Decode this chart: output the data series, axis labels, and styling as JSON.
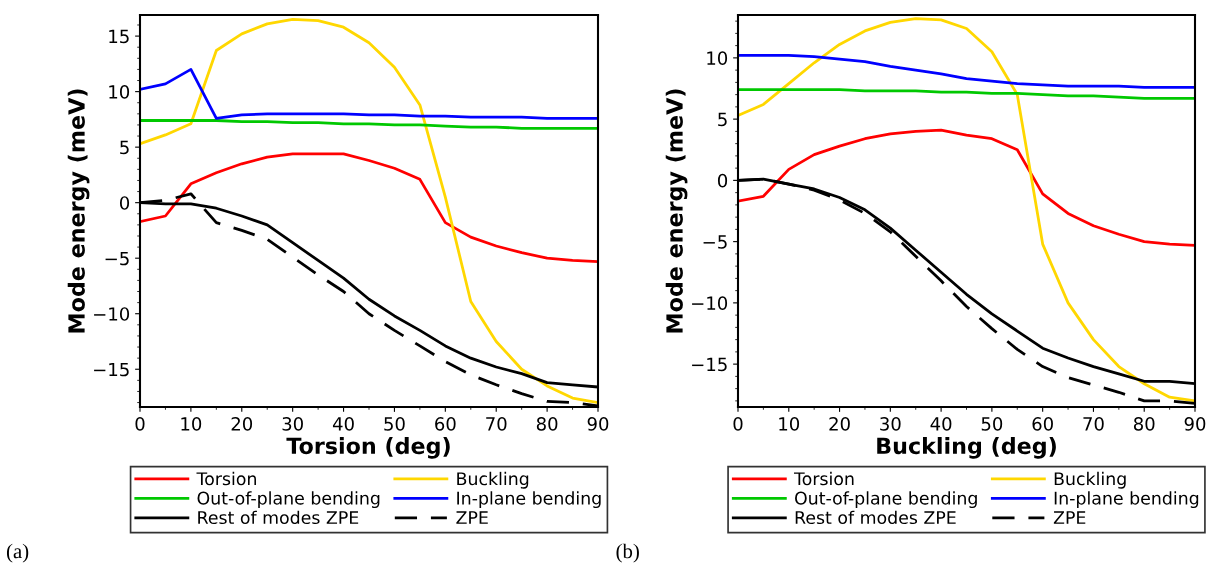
{
  "chart_data": [
    {
      "type": "line",
      "xlabel": "Torsion (deg)",
      "ylabel": "Mode energy (meV)",
      "x": [
        0,
        5,
        10,
        15,
        20,
        25,
        30,
        35,
        40,
        45,
        50,
        55,
        60,
        65,
        70,
        75,
        80,
        85,
        90
      ],
      "xlim": [
        0,
        90
      ],
      "xticks": [
        0,
        10,
        20,
        30,
        40,
        50,
        60,
        70,
        80,
        90
      ],
      "ylim": [
        -18.4,
        16.9
      ],
      "yticks": [
        -15,
        -10,
        -5,
        0,
        5,
        10,
        15
      ],
      "grid": false,
      "legend": "bottom",
      "line_style": "solid",
      "marker": "none",
      "annotations": [
        "(a)"
      ],
      "series": [
        {
          "name": "Torsion",
          "color": "#ff0000",
          "values": [
            -1.7,
            -1.2,
            1.7,
            2.7,
            3.5,
            4.1,
            4.4,
            4.4,
            4.4,
            3.8,
            3.1,
            2.1,
            -1.8,
            -3.1,
            -3.9,
            -4.5,
            -5.0,
            -5.2,
            -5.3
          ]
        },
        {
          "name": "Buckling",
          "color": "#ffd700",
          "values": [
            5.3,
            6.1,
            7.1,
            13.7,
            15.2,
            16.1,
            16.5,
            16.4,
            15.8,
            14.4,
            12.2,
            8.8,
            0.5,
            -8.9,
            -12.5,
            -15.0,
            -16.5,
            -17.6,
            -18.0
          ]
        },
        {
          "name": "Out-of-plane bending",
          "color": "#00c800",
          "values": [
            7.4,
            7.4,
            7.4,
            7.4,
            7.3,
            7.3,
            7.2,
            7.2,
            7.1,
            7.1,
            7.0,
            7.0,
            6.9,
            6.8,
            6.8,
            6.7,
            6.7,
            6.7,
            6.7
          ]
        },
        {
          "name": "In-plane bending",
          "color": "#0000ff",
          "values": [
            10.2,
            10.7,
            12.0,
            7.6,
            7.9,
            8.0,
            8.0,
            8.0,
            8.0,
            7.9,
            7.9,
            7.8,
            7.8,
            7.7,
            7.7,
            7.7,
            7.6,
            7.6,
            7.6
          ]
        },
        {
          "name": "Rest of modes ZPE",
          "color": "#000000",
          "values": [
            0,
            -0.1,
            -0.1,
            -0.5,
            -1.2,
            -2.0,
            -3.6,
            -5.2,
            -6.8,
            -8.7,
            -10.2,
            -11.5,
            -12.9,
            -14.0,
            -14.8,
            -15.4,
            -16.2,
            -16.4,
            -16.6
          ]
        },
        {
          "name": "ZPE",
          "color": "#000000",
          "line_style": "dashed",
          "values": [
            0,
            0.2,
            0.8,
            -1.8,
            -2.5,
            -3.3,
            -4.9,
            -6.5,
            -8.0,
            -10.0,
            -11.5,
            -12.9,
            -14.3,
            -15.5,
            -16.4,
            -17.2,
            -17.9,
            -18.0,
            -18.3
          ]
        }
      ]
    },
    {
      "type": "line",
      "xlabel": "Buckling (deg)",
      "ylabel": "Mode energy (meV)",
      "x": [
        0,
        5,
        10,
        15,
        20,
        25,
        30,
        35,
        40,
        45,
        50,
        55,
        60,
        65,
        70,
        75,
        80,
        85,
        90
      ],
      "xlim": [
        0,
        90
      ],
      "xticks": [
        0,
        10,
        20,
        30,
        40,
        50,
        60,
        70,
        80,
        90
      ],
      "ylim": [
        -18.5,
        13.5
      ],
      "yticks": [
        -15,
        -10,
        -5,
        0,
        5,
        10
      ],
      "grid": false,
      "legend": "bottom",
      "line_style": "solid",
      "marker": "none",
      "annotations": [
        "(b)"
      ],
      "series": [
        {
          "name": "Torsion",
          "color": "#ff0000",
          "values": [
            -1.7,
            -1.3,
            0.9,
            2.1,
            2.8,
            3.4,
            3.8,
            4.0,
            4.1,
            3.7,
            3.4,
            2.5,
            -1.1,
            -2.7,
            -3.7,
            -4.4,
            -5.0,
            -5.2,
            -5.3
          ]
        },
        {
          "name": "Buckling",
          "color": "#ffd700",
          "values": [
            5.3,
            6.2,
            7.9,
            9.6,
            11.1,
            12.2,
            12.9,
            13.2,
            13.1,
            12.4,
            10.5,
            7.0,
            -5.2,
            -10.0,
            -13.0,
            -15.2,
            -16.6,
            -17.7,
            -18.0
          ]
        },
        {
          "name": "Out-of-plane bending",
          "color": "#00c800",
          "values": [
            7.4,
            7.4,
            7.4,
            7.4,
            7.4,
            7.3,
            7.3,
            7.3,
            7.2,
            7.2,
            7.1,
            7.1,
            7.0,
            6.9,
            6.9,
            6.8,
            6.7,
            6.7,
            6.7
          ]
        },
        {
          "name": "In-plane bending",
          "color": "#0000ff",
          "values": [
            10.2,
            10.2,
            10.2,
            10.1,
            9.9,
            9.7,
            9.3,
            9.0,
            8.7,
            8.3,
            8.1,
            7.9,
            7.8,
            7.7,
            7.7,
            7.7,
            7.6,
            7.6,
            7.6
          ]
        },
        {
          "name": "Rest of modes ZPE",
          "color": "#000000",
          "values": [
            0,
            0.1,
            -0.3,
            -0.7,
            -1.4,
            -2.4,
            -3.9,
            -5.7,
            -7.5,
            -9.3,
            -10.9,
            -12.3,
            -13.7,
            -14.5,
            -15.2,
            -15.8,
            -16.4,
            -16.4,
            -16.6
          ]
        },
        {
          "name": "ZPE",
          "color": "#000000",
          "line_style": "dashed",
          "values": [
            0,
            0.1,
            -0.3,
            -0.8,
            -1.6,
            -2.7,
            -4.2,
            -6.2,
            -8.2,
            -10.3,
            -12.1,
            -13.8,
            -15.2,
            -16.1,
            -16.7,
            -17.3,
            -18.0,
            -18.0,
            -18.2
          ]
        }
      ]
    }
  ]
}
